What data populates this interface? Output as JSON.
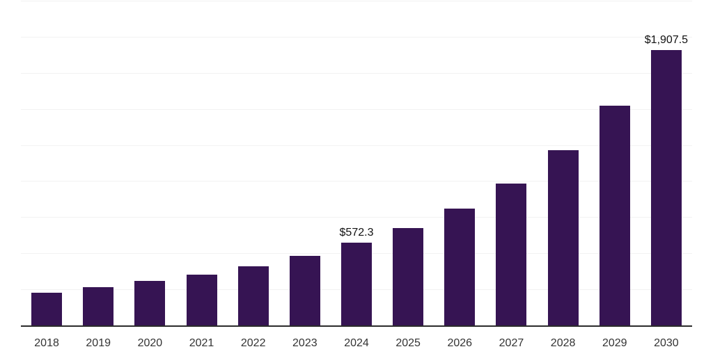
{
  "chart": {
    "background": "#ffffff",
    "colors": {
      "bar": "#361453",
      "axis_line": "#2b2b2b",
      "gridline": "#f2f2f2",
      "tick_label": "#333333",
      "data_label": "#111111"
    }
  },
  "chart_data": {
    "type": "bar",
    "title": "",
    "xlabel": "",
    "ylabel": "",
    "categories": [
      "2018",
      "2019",
      "2020",
      "2021",
      "2022",
      "2023",
      "2024",
      "2025",
      "2026",
      "2027",
      "2028",
      "2029",
      "2030"
    ],
    "values": [
      226,
      264,
      306,
      354,
      409,
      481,
      572.3,
      673,
      808,
      984,
      1216,
      1521,
      1907.5
    ],
    "labeled_points": [
      {
        "category": "2024",
        "label": "$572.3"
      },
      {
        "category": "2030",
        "label": "$1,907.5"
      }
    ],
    "ylim": [
      0,
      2250
    ],
    "gridline_interval": 250,
    "grid": "horizontal",
    "legend": false
  }
}
